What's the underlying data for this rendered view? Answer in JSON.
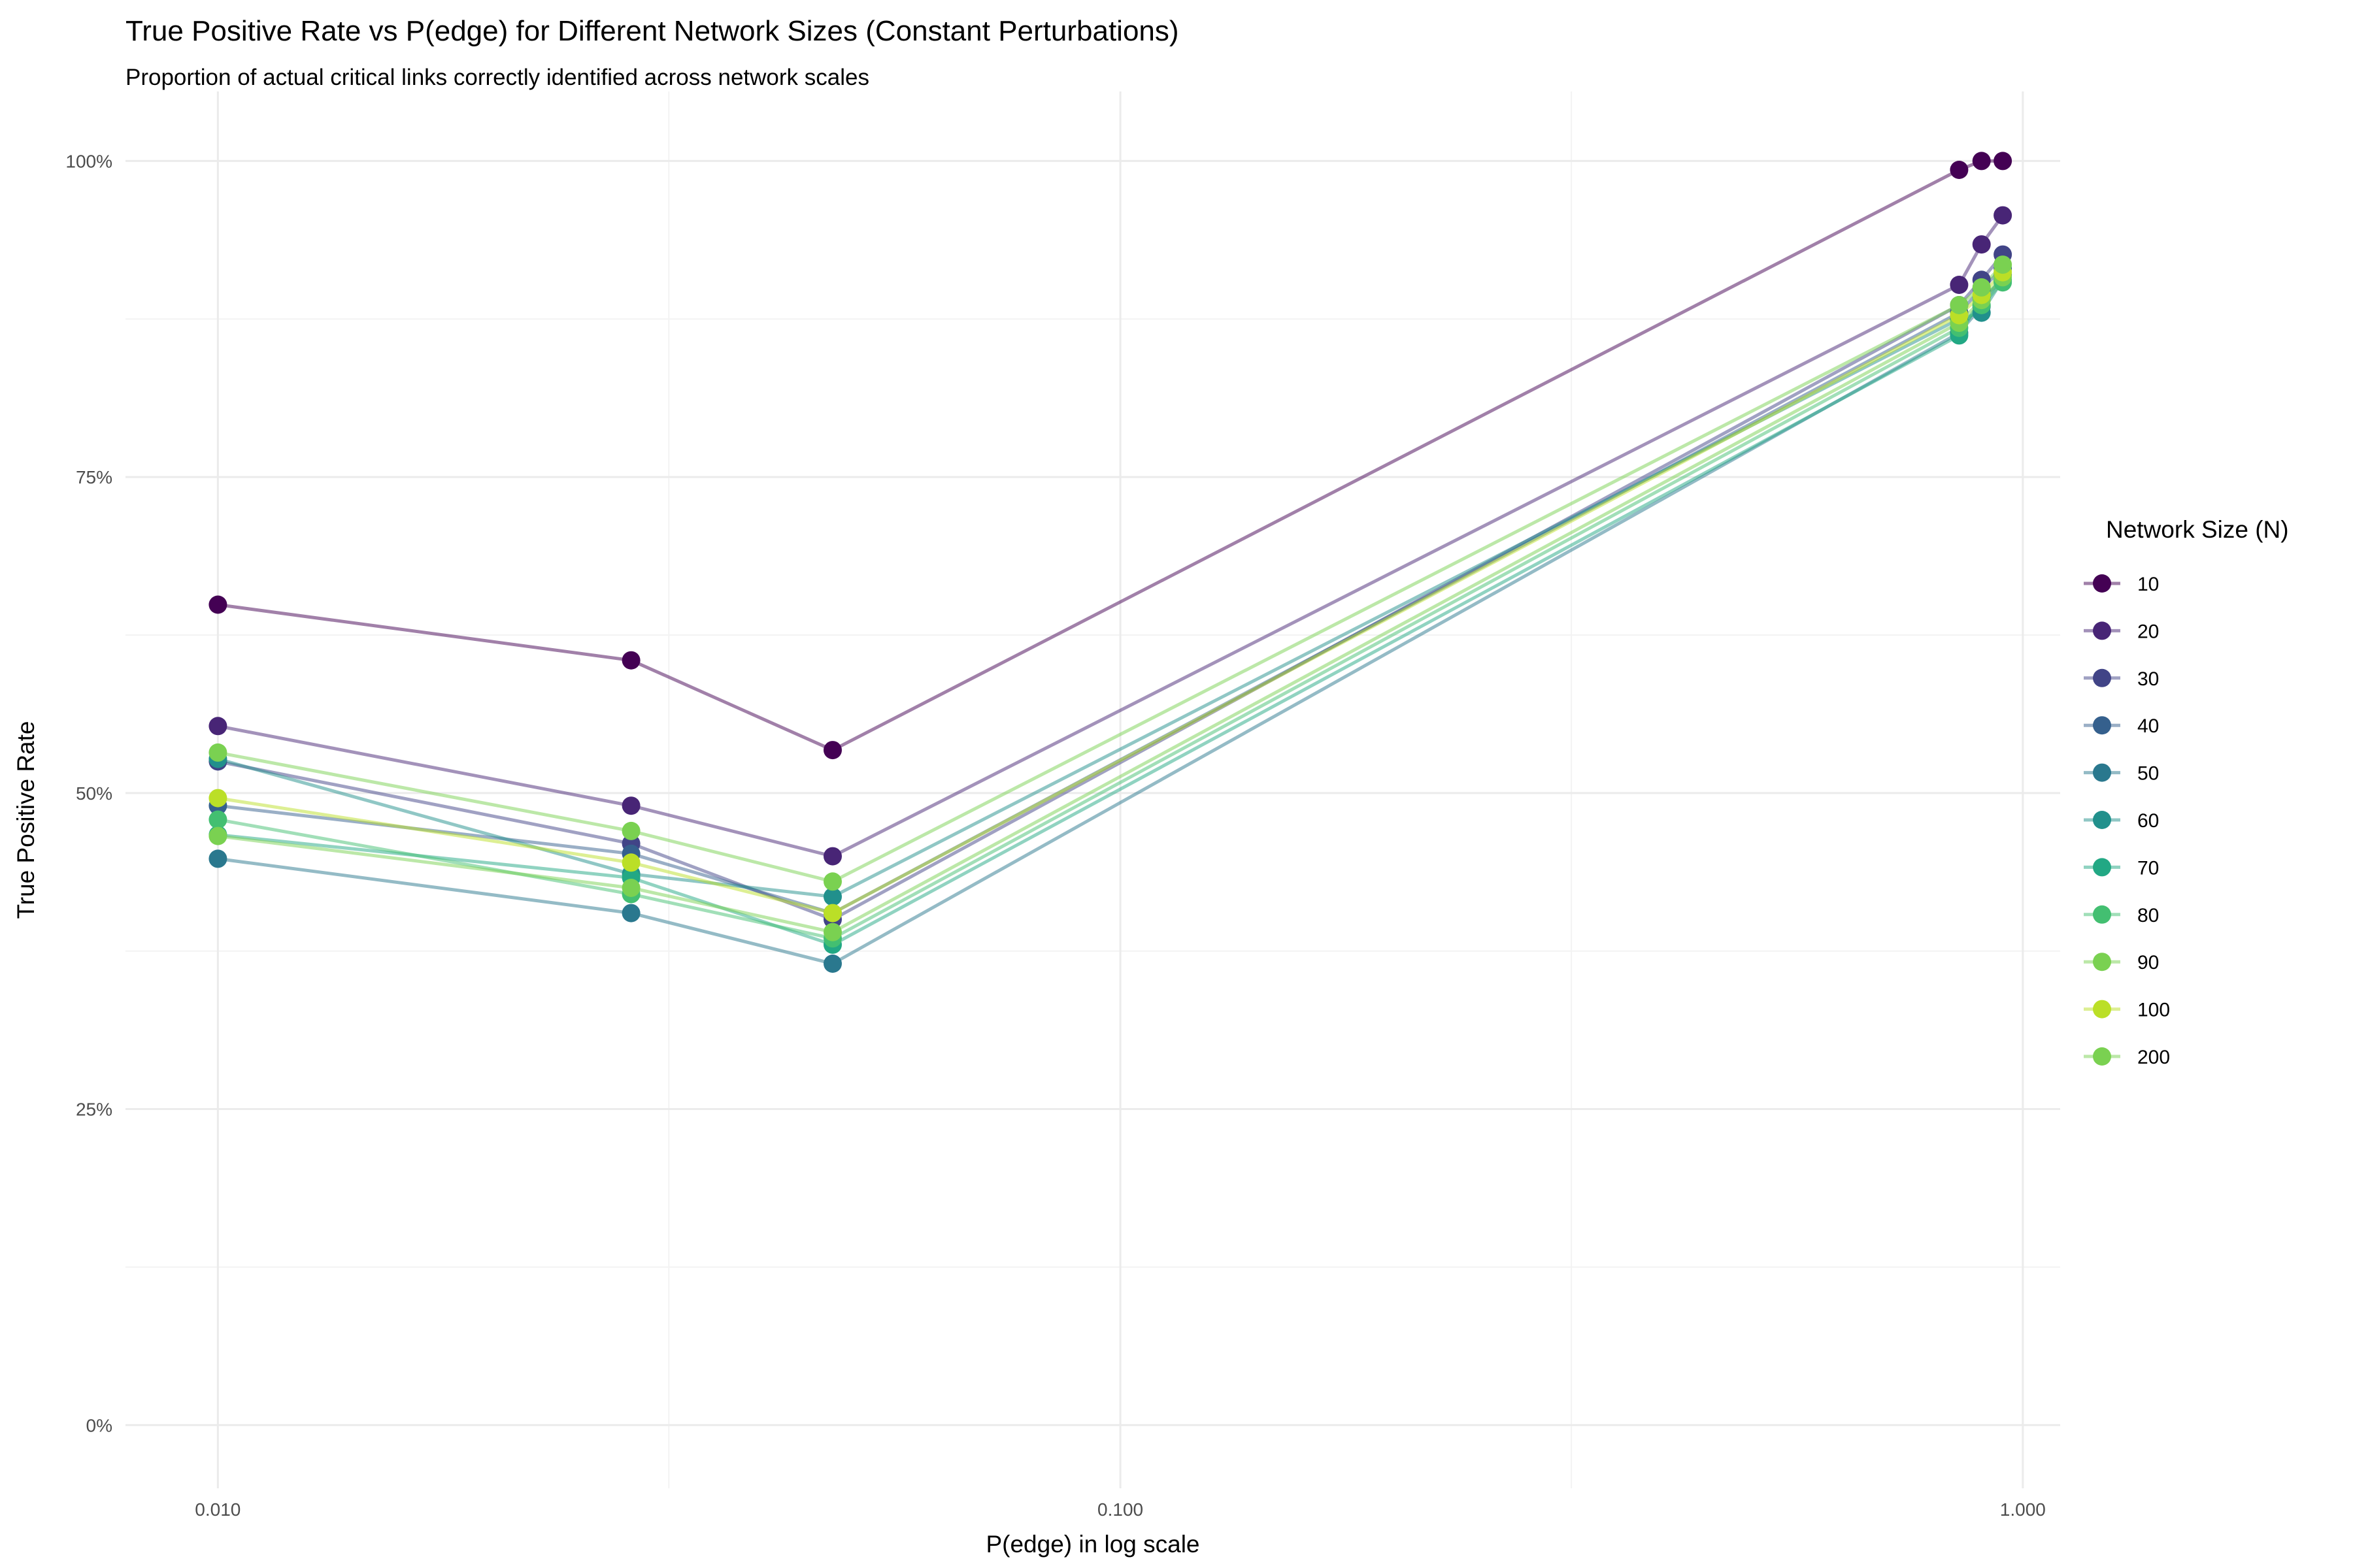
{
  "chart_data": {
    "type": "line",
    "title": "True Positive Rate vs P(edge) for Different Network Sizes (Constant Perturbations)",
    "subtitle": "Proportion of actual critical links correctly identified across network scales",
    "xlabel": "P(edge) in log scale",
    "ylabel": "True Positive Rate",
    "x_scale": "log10",
    "xlim": [
      0.0079,
      1.1
    ],
    "ylim": [
      -0.05,
      1.055
    ],
    "x_ticks": [
      {
        "value": 0.01,
        "label": "0.010"
      },
      {
        "value": 0.1,
        "label": "0.100"
      },
      {
        "value": 1.0,
        "label": "1.000"
      }
    ],
    "x_minor_ticks": [
      0.0316,
      0.316
    ],
    "y_ticks": [
      {
        "value": 0,
        "label": "0%"
      },
      {
        "value": 0.25,
        "label": "25%"
      },
      {
        "value": 0.5,
        "label": "50%"
      },
      {
        "value": 0.75,
        "label": "75%"
      },
      {
        "value": 1.0,
        "label": "100%"
      }
    ],
    "y_minor_ticks": [
      0.125,
      0.375,
      0.625,
      0.875
    ],
    "grid": true,
    "legend_title": "Network Size (N)",
    "legend_position": "right",
    "series": [
      {
        "name": "10",
        "color": "#440154",
        "x": [
          0.01,
          0.0287,
          0.048,
          0.85,
          0.9,
          0.95
        ],
        "values": [
          0.649,
          0.605,
          0.534,
          0.993,
          1.0,
          1.0
        ]
      },
      {
        "name": "20",
        "color": "#482576",
        "x": [
          0.01,
          0.0287,
          0.048,
          0.85,
          0.9,
          0.95
        ],
        "values": [
          0.553,
          0.49,
          0.45,
          0.902,
          0.934,
          0.957
        ]
      },
      {
        "name": "30",
        "color": "#414487",
        "x": [
          0.01,
          0.0287,
          0.048,
          0.85,
          0.9,
          0.95
        ],
        "values": [
          0.525,
          0.46,
          0.4,
          0.886,
          0.906,
          0.926
        ]
      },
      {
        "name": "40",
        "color": "#35608D",
        "x": [
          0.01,
          0.0287,
          0.048,
          0.85,
          0.9,
          0.95
        ],
        "values": [
          0.49,
          0.452,
          0.405,
          0.88,
          0.899,
          0.915
        ]
      },
      {
        "name": "50",
        "color": "#2A788E",
        "x": [
          0.01,
          0.0287,
          0.048,
          0.85,
          0.9,
          0.95
        ],
        "values": [
          0.448,
          0.405,
          0.365,
          0.864,
          0.885,
          0.91
        ]
      },
      {
        "name": "60",
        "color": "#21908C",
        "x": [
          0.01,
          0.0287,
          0.048,
          0.85,
          0.9,
          0.95
        ],
        "values": [
          0.527,
          0.436,
          0.418,
          0.875,
          0.88,
          0.906
        ]
      },
      {
        "name": "70",
        "color": "#22A884",
        "x": [
          0.01,
          0.0287,
          0.048,
          0.85,
          0.9,
          0.95
        ],
        "values": [
          0.467,
          0.433,
          0.38,
          0.862,
          0.892,
          0.905
        ]
      },
      {
        "name": "80",
        "color": "#43BF71",
        "x": [
          0.01,
          0.0287,
          0.048,
          0.85,
          0.9,
          0.95
        ],
        "values": [
          0.479,
          0.42,
          0.385,
          0.868,
          0.886,
          0.904
        ]
      },
      {
        "name": "90",
        "color": "#7AD151",
        "x": [
          0.01,
          0.0287,
          0.048,
          0.85,
          0.9,
          0.95
        ],
        "values": [
          0.466,
          0.425,
          0.39,
          0.872,
          0.89,
          0.908
        ]
      },
      {
        "name": "100",
        "color": "#BBDF27",
        "x": [
          0.01,
          0.0287,
          0.048,
          0.85,
          0.9,
          0.95
        ],
        "values": [
          0.496,
          0.445,
          0.405,
          0.878,
          0.894,
          0.912
        ]
      },
      {
        "name": "200",
        "color": "#7AD151",
        "x": [
          0.01,
          0.0287,
          0.048,
          0.85,
          0.9,
          0.95
        ],
        "values": [
          0.532,
          0.47,
          0.43,
          0.886,
          0.9,
          0.918
        ]
      }
    ]
  }
}
